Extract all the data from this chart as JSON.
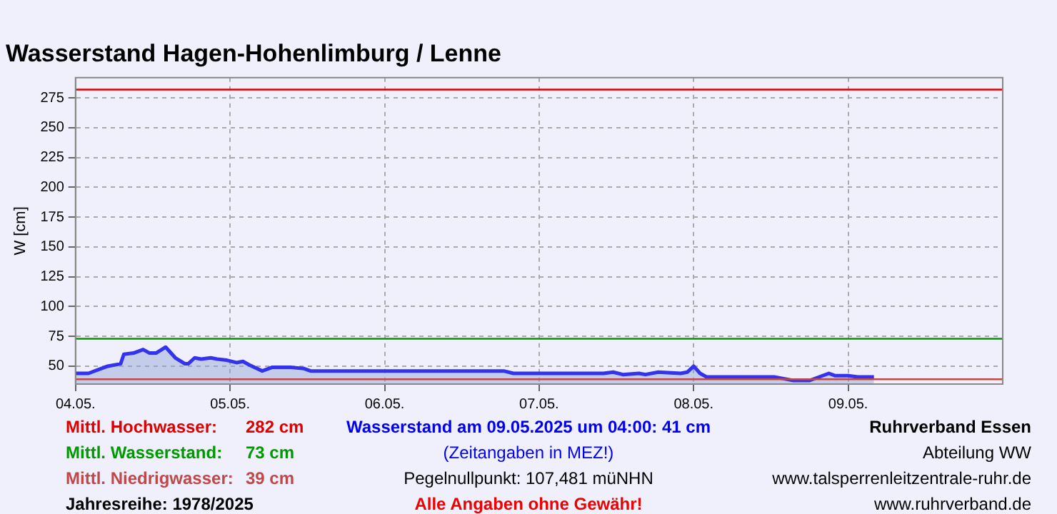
{
  "chart_data": {
    "type": "area",
    "title": "Wasserstand Hagen-Hohenlimburg / Lenne",
    "ylabel": "W [cm]",
    "x": [
      "2025-05-04T00:00",
      "2025-05-04T02:00",
      "2025-05-04T03:30",
      "2025-05-04T05:00",
      "2025-05-04T07:00",
      "2025-05-04T07:30",
      "2025-05-04T09:00",
      "2025-05-04T10:30",
      "2025-05-04T11:30",
      "2025-05-04T12:30",
      "2025-05-04T14:00",
      "2025-05-04T15:30",
      "2025-05-04T17:00",
      "2025-05-04T17:30",
      "2025-05-04T18:30",
      "2025-05-04T19:30",
      "2025-05-04T21:00",
      "2025-05-04T22:00",
      "2025-05-04T23:30",
      "2025-05-05T01:00",
      "2025-05-05T02:00",
      "2025-05-05T03:00",
      "2025-05-05T05:00",
      "2025-05-05T06:30",
      "2025-05-05T09:30",
      "2025-05-05T11:30",
      "2025-05-05T12:30",
      "2025-05-06T18:30",
      "2025-05-06T20:00",
      "2025-05-07T10:00",
      "2025-05-07T11:30",
      "2025-05-07T13:00",
      "2025-05-07T15:30",
      "2025-05-07T16:30",
      "2025-05-07T18:30",
      "2025-05-07T22:00",
      "2025-05-07T23:00",
      "2025-05-08T00:00",
      "2025-05-08T01:00",
      "2025-05-08T02:00",
      "2025-05-08T12:30",
      "2025-05-08T13:30",
      "2025-05-08T15:30",
      "2025-05-08T18:00",
      "2025-05-08T19:30",
      "2025-05-08T21:00",
      "2025-05-08T22:00",
      "2025-05-09T00:00",
      "2025-05-09T01:30",
      "2025-05-09T04:00"
    ],
    "series": [
      {
        "color": "#3333ee",
        "values": [
          44,
          44,
          47,
          50,
          52,
          60,
          61,
          64,
          61,
          61,
          66,
          57,
          52,
          52,
          57,
          56,
          57,
          56,
          55,
          53,
          54,
          51,
          46,
          49,
          49,
          48,
          46,
          46,
          44,
          44,
          45,
          43,
          44,
          43,
          45,
          44,
          45,
          50,
          44,
          41,
          41,
          40,
          38,
          38,
          41,
          44,
          42,
          42,
          41,
          41
        ]
      }
    ],
    "xlim": [
      "2025-05-04T00:00",
      "2025-05-10T00:00"
    ],
    "xticks": [
      {
        "value": "2025-05-04T00:00",
        "label": "04.05."
      },
      {
        "value": "2025-05-05T00:00",
        "label": "05.05."
      },
      {
        "value": "2025-05-06T00:00",
        "label": "06.05."
      },
      {
        "value": "2025-05-07T00:00",
        "label": "07.05."
      },
      {
        "value": "2025-05-08T00:00",
        "label": "08.05."
      },
      {
        "value": "2025-05-09T00:00",
        "label": "09.05."
      }
    ],
    "ylim": [
      35,
      292
    ],
    "yticks": [
      50,
      75,
      100,
      125,
      150,
      175,
      200,
      225,
      250,
      275
    ],
    "ref_lines": [
      {
        "axis": "y",
        "value": 282,
        "label": "Mittl. Hochwasser:",
        "color": "#dd0000"
      },
      {
        "axis": "y",
        "value": 73,
        "label": "Mittl. Wasserstand:",
        "color": "#009900"
      },
      {
        "axis": "y",
        "value": 39,
        "label": "Mittl. Niedrigwasser:",
        "color": "#c04848"
      }
    ],
    "annotations": [
      "282 cm",
      "73 cm",
      "39 cm",
      "Jahresreihe: 1978/2025",
      "Wasserstand am 09.05.2025 um 04:00: 41 cm",
      "(Zeitangaben in MEZ!)",
      "Pegelnullpunkt:  107,481 müNHN",
      "Alle Angaben ohne Gewähr!",
      "Ruhrverband Essen",
      "Abteilung WW",
      "www.talsperrenleitzentrale-ruhr.de",
      "www.ruhrverband.de"
    ],
    "grid": true,
    "legend": false
  }
}
